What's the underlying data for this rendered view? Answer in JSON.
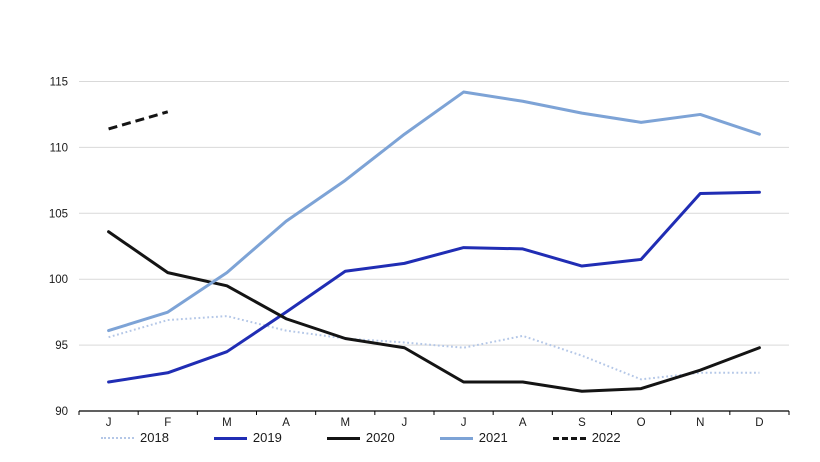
{
  "chart_data": {
    "type": "line",
    "title": "",
    "xlabel": "",
    "ylabel": "",
    "categories": [
      "J",
      "F",
      "M",
      "A",
      "M",
      "J",
      "J",
      "A",
      "S",
      "O",
      "N",
      "D"
    ],
    "y_ticks": [
      90,
      95,
      100,
      105,
      110,
      115
    ],
    "ylim": [
      90,
      115
    ],
    "grid": true,
    "legend_position": "bottom",
    "colors": {
      "gridline": "#D9D9D9",
      "axis": "#000000",
      "text": "#1a1a1a"
    },
    "series": [
      {
        "name": "2018",
        "color": "#B4C7E7",
        "style": "dotted",
        "width": 2,
        "values": [
          95.6,
          96.9,
          97.2,
          96.1,
          95.5,
          95.2,
          94.8,
          95.7,
          94.2,
          92.4,
          92.9,
          92.9
        ]
      },
      {
        "name": "2019",
        "color": "#202DB4",
        "style": "solid",
        "width": 3,
        "values": [
          92.2,
          92.9,
          94.5,
          97.5,
          100.6,
          101.2,
          102.4,
          102.3,
          101.0,
          101.5,
          106.5,
          106.6
        ]
      },
      {
        "name": "2020",
        "color": "#141414",
        "style": "solid",
        "width": 3,
        "values": [
          103.6,
          100.5,
          99.5,
          97.0,
          95.5,
          94.8,
          92.2,
          92.2,
          91.5,
          91.7,
          93.1,
          94.8
        ]
      },
      {
        "name": "2021",
        "color": "#7DA3D6",
        "style": "solid",
        "width": 3,
        "values": [
          96.1,
          97.5,
          100.5,
          104.4,
          107.5,
          111.0,
          114.2,
          113.5,
          112.6,
          111.9,
          112.5,
          111.0
        ]
      },
      {
        "name": "2022",
        "color": "#141414",
        "style": "dashed",
        "width": 3,
        "values": [
          111.4,
          112.7
        ]
      }
    ]
  }
}
